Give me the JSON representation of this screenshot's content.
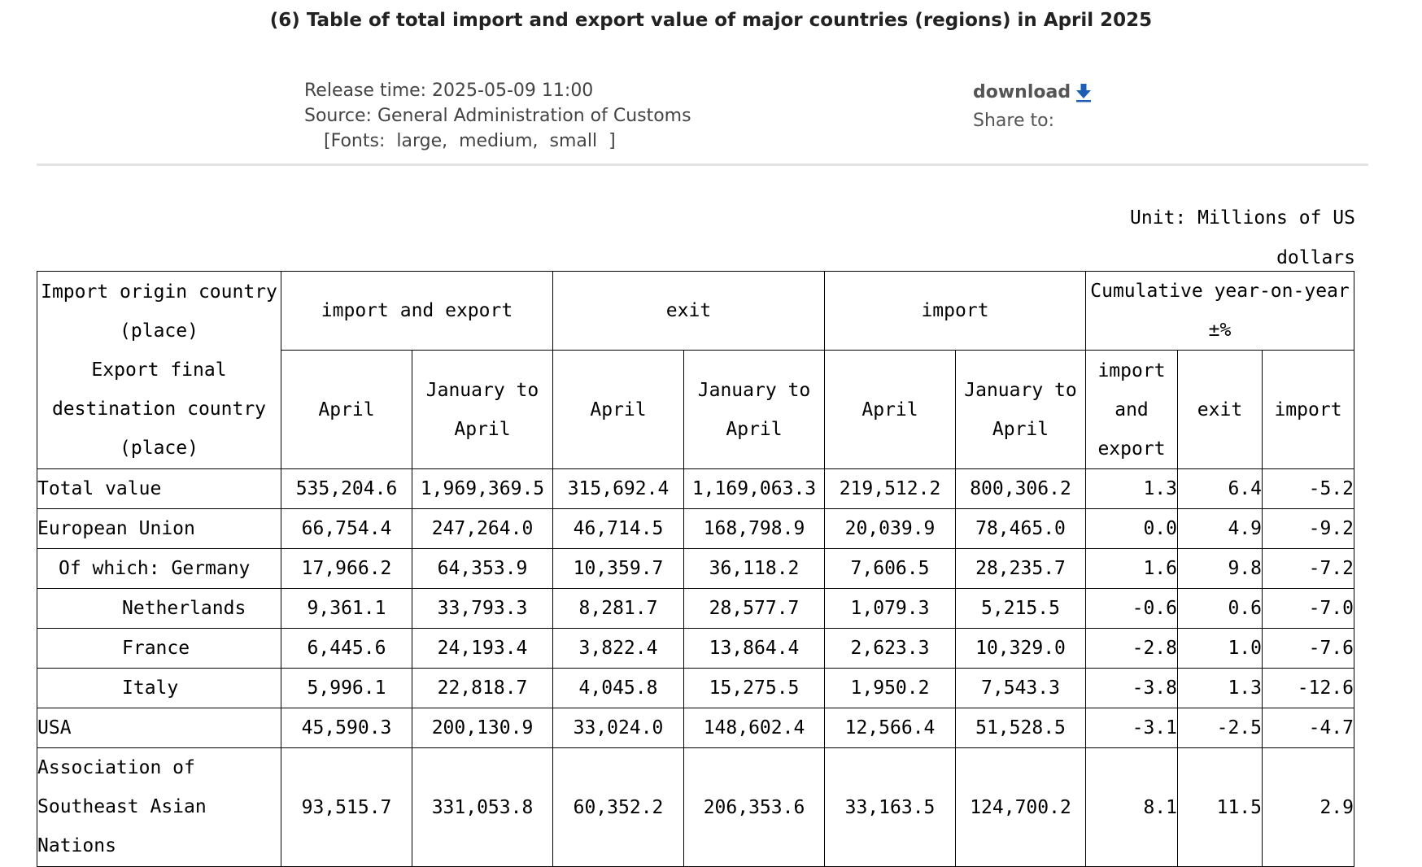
{
  "page": {
    "title": "(6) Table of total import and export value of major countries (regions) in April 2025"
  },
  "meta": {
    "release_time": "Release time: 2025-05-09 11:00",
    "source": "Source: General Administration of Customs",
    "fonts_prefix": "[Fonts:",
    "font_large": "large,",
    "font_medium": "medium,",
    "font_small": "small",
    "fonts_suffix": "]",
    "download_label": "download",
    "share_label": "Share to:"
  },
  "unit": {
    "line1": "Unit: Millions of US",
    "line2": "dollars"
  },
  "table": {
    "headers": {
      "origin_line1": "Import origin country",
      "origin_line2": "(place)",
      "dest_line1": "Export final",
      "dest_line2": "destination country",
      "dest_line3": "(place)",
      "group_ie": "import and export",
      "group_exit": "exit",
      "group_import": "import",
      "group_cum_line1": "Cumulative year-on-year",
      "group_cum_line2": "±%",
      "april": "April",
      "jan_apr_line1": "January to",
      "jan_apr_line2": "April",
      "cum_ie_line1": "import",
      "cum_ie_line2": "and",
      "cum_ie_line3": "export",
      "cum_exit": "exit",
      "cum_import": "import"
    },
    "rows": [
      {
        "name": "Total value",
        "ie_apr": "535,204.6",
        "ie_jan": "1,969,369.5",
        "ex_apr": "315,692.4",
        "ex_jan": "1,169,063.3",
        "im_apr": "219,512.2",
        "im_jan": "800,306.2",
        "c_ie": "1.3",
        "c_ex": "6.4",
        "c_im": "-5.2"
      },
      {
        "name": "European Union",
        "ie_apr": "66,754.4",
        "ie_jan": "247,264.0",
        "ex_apr": "46,714.5",
        "ex_jan": "168,798.9",
        "im_apr": "20,039.9",
        "im_jan": "78,465.0",
        "c_ie": "0.0",
        "c_ex": "4.9",
        "c_im": "-9.2"
      },
      {
        "name": "Of which: Germany",
        "ie_apr": "17,966.2",
        "ie_jan": "64,353.9",
        "ex_apr": "10,359.7",
        "ex_jan": "36,118.2",
        "im_apr": "7,606.5",
        "im_jan": "28,235.7",
        "c_ie": "1.6",
        "c_ex": "9.8",
        "c_im": "-7.2"
      },
      {
        "name": "Netherlands",
        "ie_apr": "9,361.1",
        "ie_jan": "33,793.3",
        "ex_apr": "8,281.7",
        "ex_jan": "28,577.7",
        "im_apr": "1,079.3",
        "im_jan": "5,215.5",
        "c_ie": "-0.6",
        "c_ex": "0.6",
        "c_im": "-7.0"
      },
      {
        "name": "France",
        "ie_apr": "6,445.6",
        "ie_jan": "24,193.4",
        "ex_apr": "3,822.4",
        "ex_jan": "13,864.4",
        "im_apr": "2,623.3",
        "im_jan": "10,329.0",
        "c_ie": "-2.8",
        "c_ex": "1.0",
        "c_im": "-7.6"
      },
      {
        "name": "Italy",
        "ie_apr": "5,996.1",
        "ie_jan": "22,818.7",
        "ex_apr": "4,045.8",
        "ex_jan": "15,275.5",
        "im_apr": "1,950.2",
        "im_jan": "7,543.3",
        "c_ie": "-3.8",
        "c_ex": "1.3",
        "c_im": "-12.6"
      },
      {
        "name": "USA",
        "ie_apr": "45,590.3",
        "ie_jan": "200,130.9",
        "ex_apr": "33,024.0",
        "ex_jan": "148,602.4",
        "im_apr": "12,566.4",
        "im_jan": "51,528.5",
        "c_ie": "-3.1",
        "c_ex": "-2.5",
        "c_im": "-4.7"
      },
      {
        "name_line1": "Association of",
        "name_line2": "Southeast Asian",
        "name_line3": "Nations",
        "ie_apr": "93,515.7",
        "ie_jan": "331,053.8",
        "ex_apr": "60,352.2",
        "ex_jan": "206,353.6",
        "im_apr": "33,163.5",
        "im_jan": "124,700.2",
        "c_ie": "8.1",
        "c_ex": "11.5",
        "c_im": "2.9"
      }
    ]
  },
  "colors": {
    "divider": "#e3e3e3",
    "download_icon": "#1e5fb5"
  }
}
